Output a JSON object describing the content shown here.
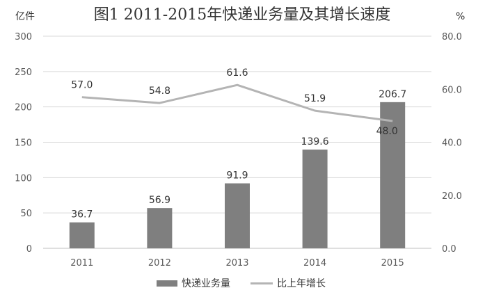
{
  "chart_data": {
    "type": "bar",
    "title": "图1 2011-2015年快递业务量及其增长速度",
    "left_axis_unit": "亿件",
    "right_axis_unit": "%",
    "categories": [
      "2011",
      "2012",
      "2013",
      "2014",
      "2015"
    ],
    "left_ylim": [
      0,
      300
    ],
    "left_ticks": [
      "0",
      "50",
      "100",
      "150",
      "200",
      "250",
      "300"
    ],
    "right_ylim": [
      0,
      80
    ],
    "right_ticks": [
      "0.0",
      "20.0",
      "40.0",
      "60.0",
      "80.0"
    ],
    "grid": true,
    "legend_position": "bottom",
    "series": [
      {
        "name": "快递业务量",
        "type": "bar",
        "axis": "left",
        "color": "#7f7f7f",
        "values": [
          36.7,
          56.9,
          91.9,
          139.6,
          206.7
        ],
        "labels": [
          "36.7",
          "56.9",
          "91.9",
          "139.6",
          "206.7"
        ]
      },
      {
        "name": "比上年增长",
        "type": "line",
        "axis": "right",
        "color": "#b4b4b4",
        "values": [
          57.0,
          54.8,
          61.6,
          51.9,
          48.0
        ],
        "labels": [
          "57.0",
          "54.8",
          "61.6",
          "51.9",
          "48.0"
        ]
      }
    ]
  }
}
